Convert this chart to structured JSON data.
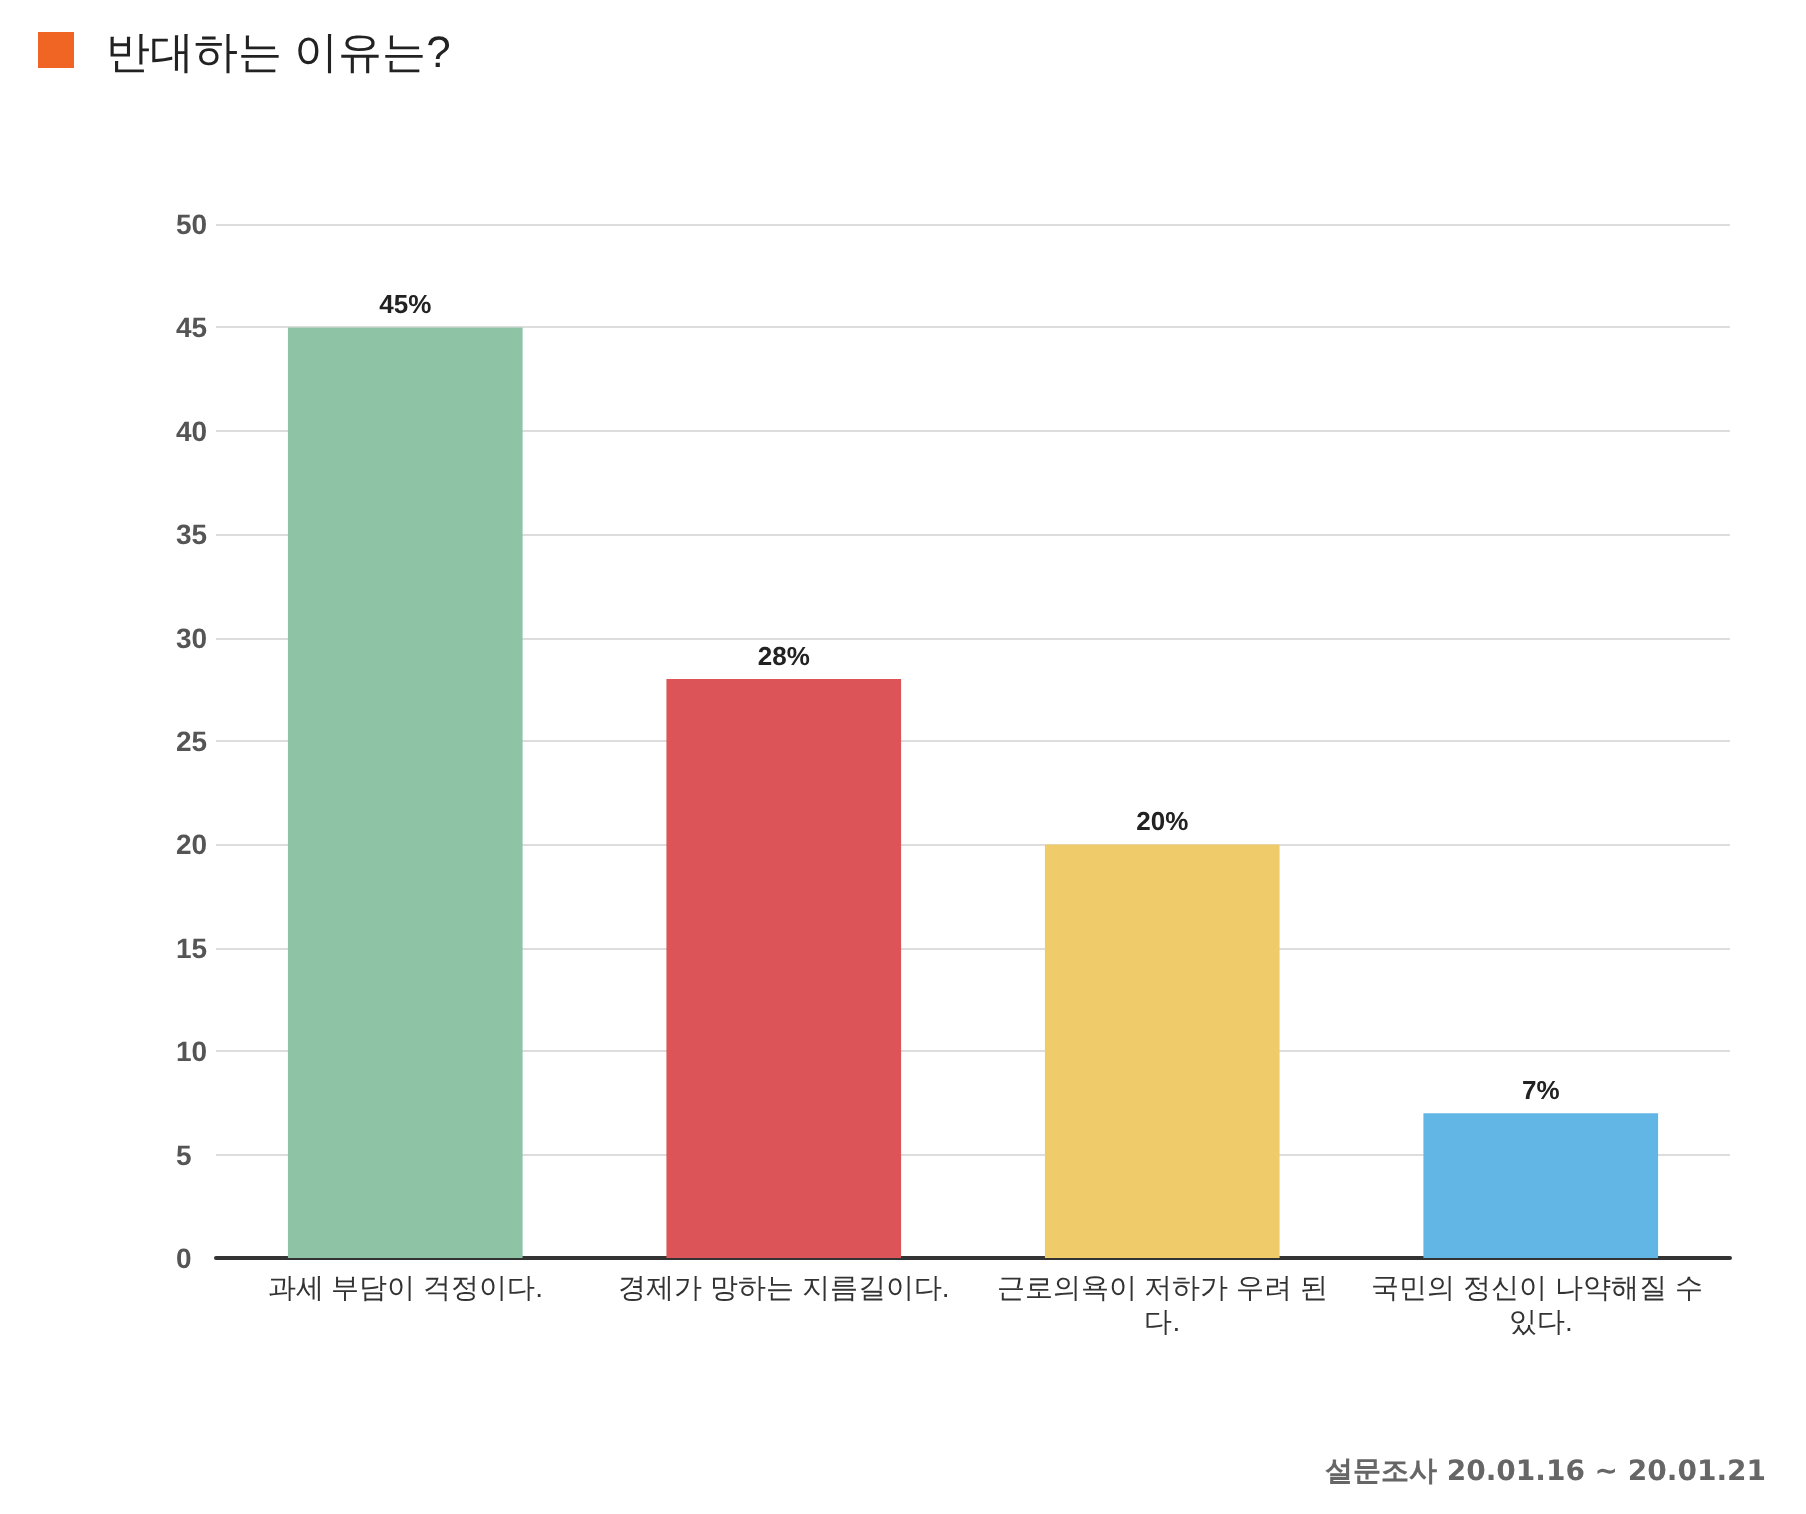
{
  "chart_data": {
    "type": "bar",
    "title": "반대하는 이유는?",
    "categories": [
      "과세 부담이 걱정이다.",
      "경제가 망하는 지름길이다.",
      "근로의욕이 저하가 우려 된다.",
      "국민의 정신이 나약해질 수 있다."
    ],
    "values": [
      45,
      28,
      20,
      7
    ],
    "colors": [
      "#8fc3a6",
      "#dc5457",
      "#efcb6a",
      "#62b6e5"
    ],
    "value_labels": [
      "45%",
      "28%",
      "20%",
      "7%"
    ],
    "ylim": [
      0,
      50
    ],
    "yticks": [
      0,
      5,
      10,
      15,
      20,
      25,
      30,
      35,
      40,
      45,
      50
    ],
    "grid": "y",
    "annotations": [
      "설문조사 20.01.16 ~ 20.01.21"
    ]
  }
}
